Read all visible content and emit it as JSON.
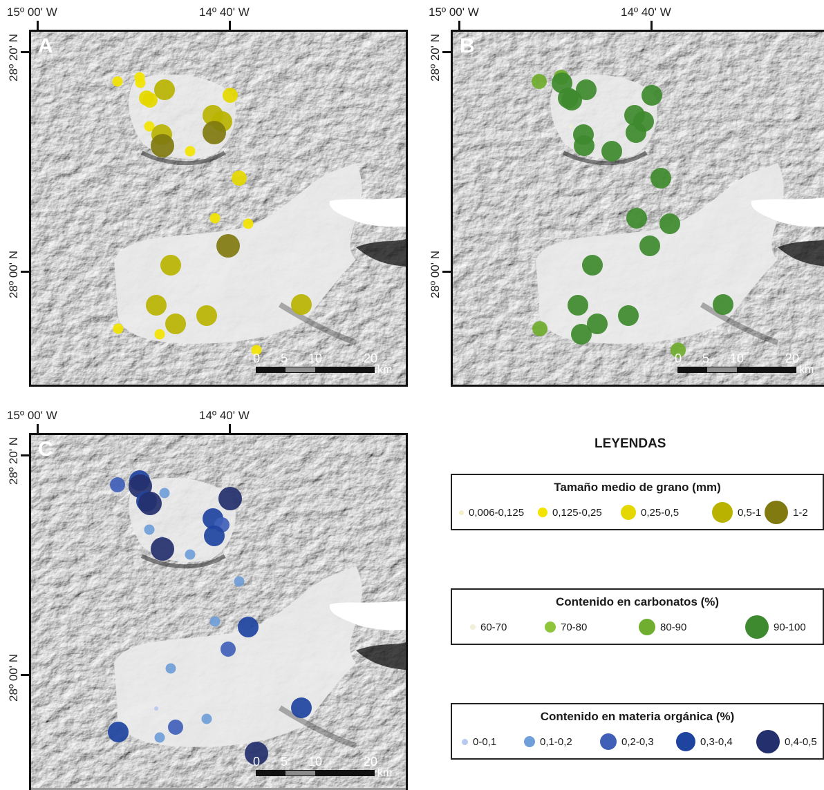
{
  "coords": {
    "lon_left": "15º 00' W",
    "lon_mid": "14º 40' W",
    "lat_top": "28º 20' N",
    "lat_bot": "28º 00' N"
  },
  "panels": [
    {
      "letter": "A",
      "colors": [
        "#f5efc8",
        "#f2e400",
        "#e5d800",
        "#b9b300",
        "#807a10"
      ]
    },
    {
      "letter": "B",
      "colors": [
        "#f0f0d8",
        "#8ec53a",
        "#6fae2e",
        "#3e8a2e",
        "#2f7026"
      ]
    },
    {
      "letter": "C",
      "colors": [
        "#b7c9ee",
        "#6f9ed8",
        "#4060b8",
        "#1f44a0",
        "#24306e"
      ]
    }
  ],
  "scale": {
    "labels": [
      "0",
      "5",
      "10",
      "20"
    ],
    "unit": "km"
  },
  "legends": {
    "title": "LEYENDAS",
    "grain": {
      "title": "Tamaño medio de grano (mm)",
      "items": [
        "0,006-0,125",
        "0,125-0,25",
        "0,25-0,5",
        "0,5-1",
        "1-2"
      ],
      "colors": [
        "#f5efc8",
        "#f2e400",
        "#e5d800",
        "#b9b300",
        "#807a10"
      ]
    },
    "carb": {
      "title": "Contenido en carbonatos (%)",
      "items": [
        "60-70",
        "70-80",
        "80-90",
        "90-100"
      ],
      "colors": [
        "#f0f0d8",
        "#8ec53a",
        "#6fae2e",
        "#3e8a2e"
      ]
    },
    "org": {
      "title": "Contenido en materia orgánica (%)",
      "items": [
        "0-0,1",
        "0,1-0,2",
        "0,2-0,3",
        "0,3-0,4",
        "0,4-0,5"
      ],
      "colors": [
        "#b7c9ee",
        "#6f9ed8",
        "#4060b8",
        "#1f44a0",
        "#24306e"
      ]
    }
  }
}
